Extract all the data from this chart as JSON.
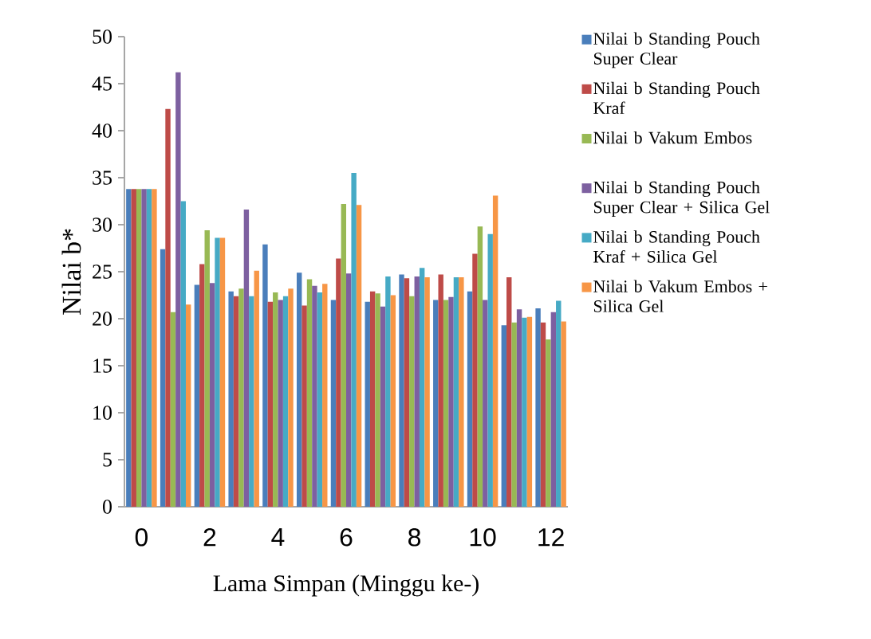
{
  "chart_data": {
    "type": "bar",
    "xlabel": "Lama Simpan (Minggu ke-)",
    "ylabel": "Nilai b*",
    "categories": [
      "0",
      null,
      "2",
      null,
      "4",
      null,
      "6",
      null,
      "8",
      null,
      "10",
      null,
      "12"
    ],
    "ylim": [
      0,
      50
    ],
    "yticks": [
      0,
      5,
      10,
      15,
      20,
      25,
      30,
      35,
      40,
      45,
      50
    ],
    "legend": "right",
    "series": [
      {
        "name": "Nilai b Standing Pouch Super Clear",
        "color": "#4a7ebb",
        "values": [
          33.8,
          27.4,
          23.6,
          22.9,
          27.9,
          24.9,
          22.0,
          21.8,
          24.7,
          22.0,
          22.9,
          19.3,
          21.1
        ]
      },
      {
        "name": "Nilai b Standing Pouch Kraf",
        "color": "#be4b48",
        "values": [
          33.8,
          42.3,
          25.8,
          22.4,
          21.8,
          21.4,
          26.4,
          22.9,
          24.3,
          24.7,
          26.9,
          24.4,
          19.6
        ]
      },
      {
        "name": "Nilai b Vakum Embos",
        "color": "#98b954",
        "values": [
          33.8,
          20.7,
          29.4,
          23.2,
          22.8,
          24.2,
          32.2,
          22.7,
          22.4,
          22.0,
          29.8,
          19.6,
          17.8
        ]
      },
      {
        "name": "Nilai b Standing Pouch Super Clear + Silica Gel",
        "color": "#7d60a0",
        "values": [
          33.8,
          46.2,
          23.8,
          31.6,
          22.0,
          23.5,
          24.8,
          21.3,
          24.5,
          22.3,
          22.0,
          21.0,
          20.7
        ]
      },
      {
        "name": "Nilai b Standing Pouch Kraf + Silica Gel",
        "color": "#46aac5",
        "values": [
          33.8,
          32.5,
          28.6,
          22.4,
          22.4,
          22.8,
          35.5,
          24.5,
          25.4,
          24.4,
          29.0,
          20.1,
          21.9
        ]
      },
      {
        "name": "Nilai b Vakum Embos + Silica Gel",
        "color": "#f79646",
        "values": [
          33.8,
          21.5,
          28.6,
          25.1,
          23.2,
          23.7,
          32.1,
          22.5,
          24.4,
          24.4,
          33.1,
          20.2,
          19.7
        ]
      }
    ]
  }
}
